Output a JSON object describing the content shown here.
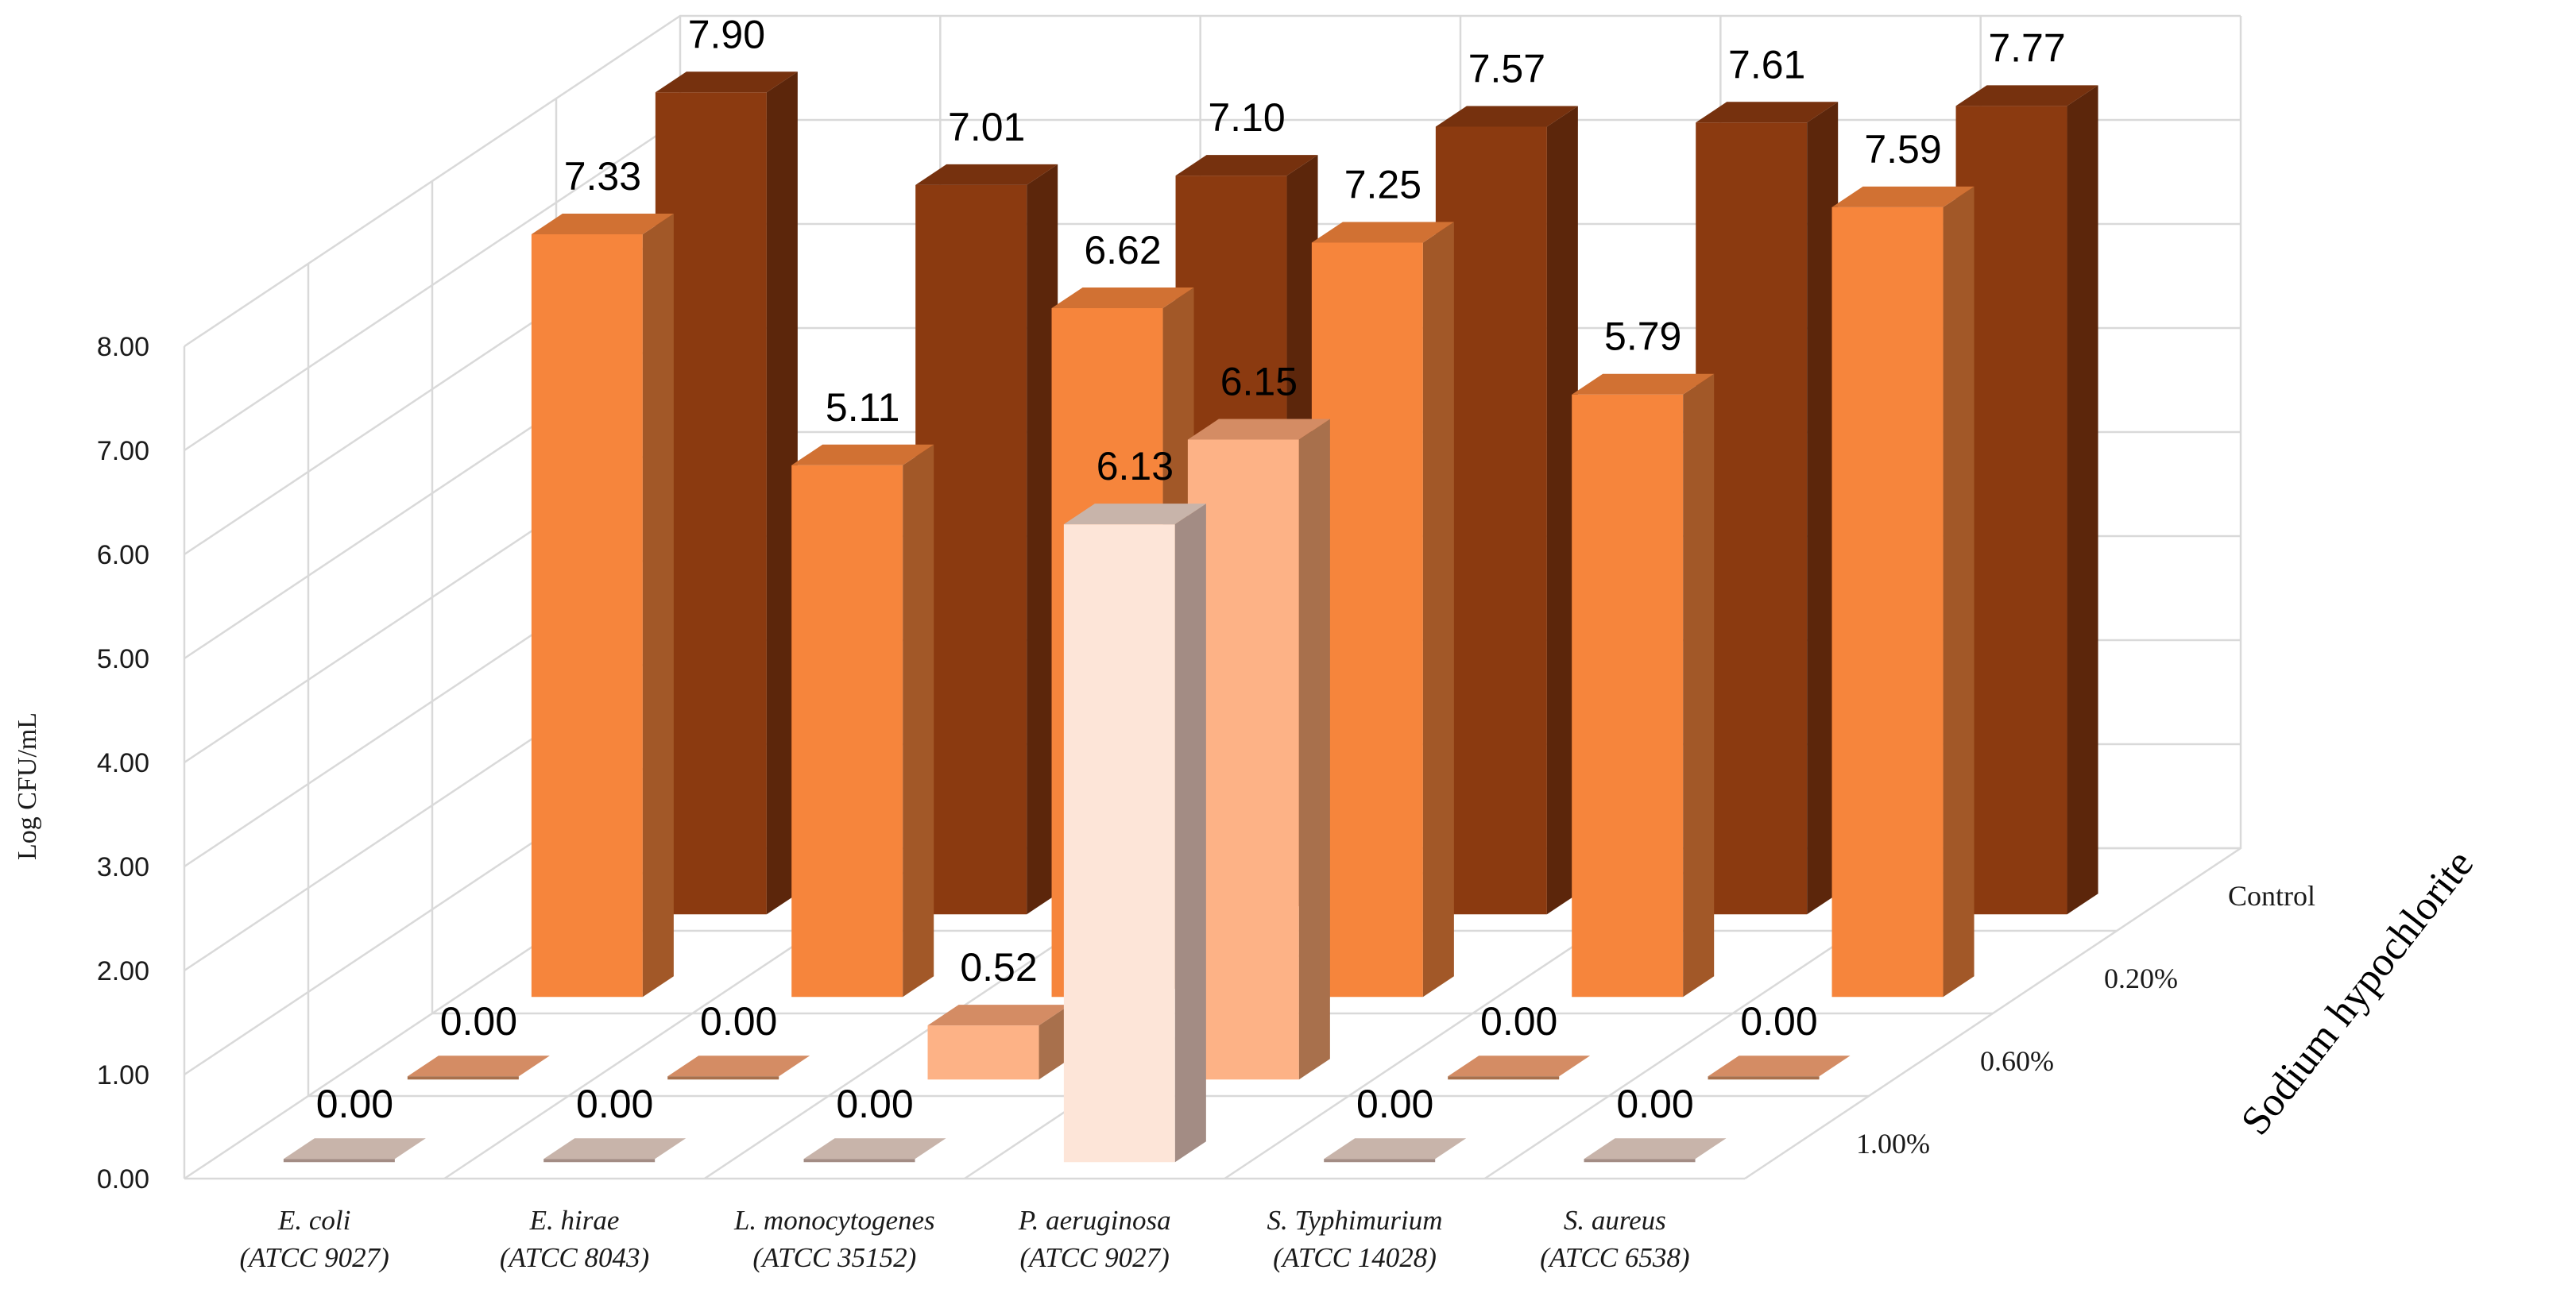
{
  "chart_data": {
    "type": "bar",
    "style": "3d-column",
    "ylabel": "Log CFU/mL",
    "yticks": [
      "0.00",
      "1.00",
      "2.00",
      "3.00",
      "4.00",
      "5.00",
      "6.00",
      "7.00",
      "8.00"
    ],
    "ylim": [
      0,
      8
    ],
    "depth_axis_title": "Sodium hypochlorite",
    "categories": [
      {
        "name": "E. coli",
        "strain": "(ATCC 9027)"
      },
      {
        "name": "E. hirae",
        "strain": "(ATCC 8043)"
      },
      {
        "name": "L. monocytogenes",
        "strain": "(ATCC 35152)"
      },
      {
        "name": "P. aeruginosa",
        "strain": "(ATCC 9027)"
      },
      {
        "name": "S. Typhimurium",
        "strain": "(ATCC 14028)"
      },
      {
        "name": "S. aureus",
        "strain": "(ATCC 6538)"
      }
    ],
    "series": [
      {
        "name": "1.00%",
        "color": "#fde5d8",
        "values": [
          0.0,
          0.0,
          0.0,
          6.13,
          0.0,
          0.0
        ],
        "labels": [
          "0.00",
          "0.00",
          "0.00",
          "6.13",
          "0.00",
          "0.00"
        ]
      },
      {
        "name": "0.60%",
        "color": "#fdb286",
        "values": [
          0.0,
          0.0,
          0.52,
          6.15,
          0.0,
          0.0
        ],
        "labels": [
          "0.00",
          "0.00",
          "0.52",
          "6.15",
          "0.00",
          "0.00"
        ]
      },
      {
        "name": "0.20%",
        "color": "#f6853c",
        "values": [
          7.33,
          5.11,
          6.62,
          7.25,
          5.79,
          7.59
        ],
        "labels": [
          "7.33",
          "5.11",
          "6.62",
          "7.25",
          "5.79",
          "7.59"
        ]
      },
      {
        "name": "Control",
        "color": "#8b3a10",
        "values": [
          7.9,
          7.01,
          7.1,
          7.57,
          7.61,
          7.77
        ],
        "labels": [
          "7.90",
          "7.01",
          "7.10",
          "7.57",
          "7.61",
          "7.77"
        ]
      }
    ]
  }
}
